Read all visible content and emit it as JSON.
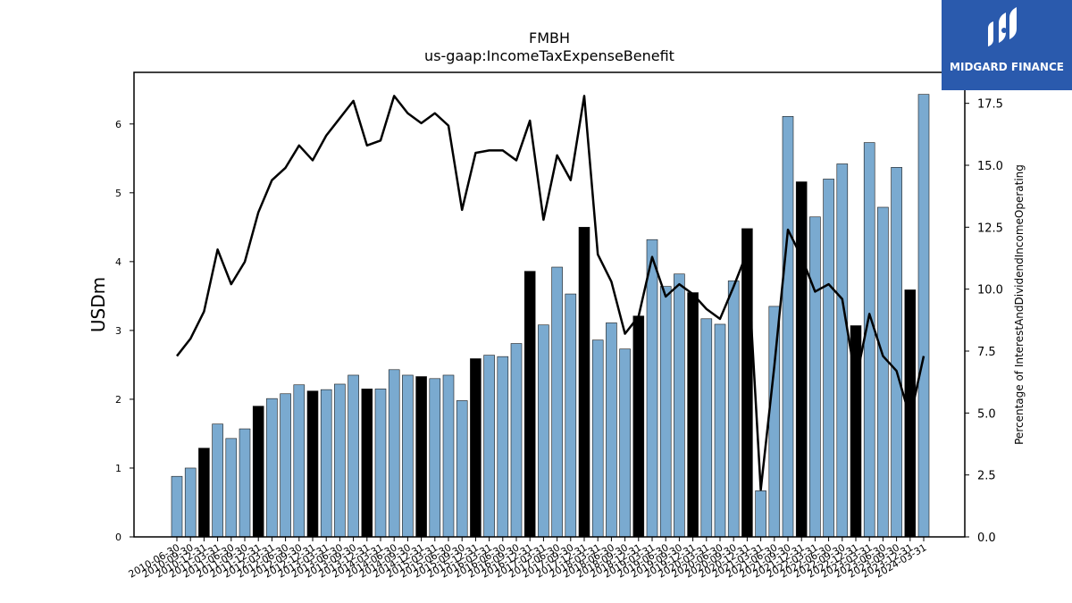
{
  "logo": {
    "text": "MIDGARD FINANCE",
    "icon": "midgard-logo-icon",
    "background": "#2a5aad"
  },
  "chart_data": {
    "type": "bar",
    "title": "FMBH",
    "subtitle": "us-gaap:IncomeTaxExpenseBenefit",
    "ylabel": "USDm",
    "y2label": "Percentage of InterestAndDividendIncomeOperating",
    "ylim": [
      0,
      6.75
    ],
    "y2lim": [
      0,
      18.75
    ],
    "yticks": [
      "0",
      "1",
      "2",
      "3",
      "4",
      "5",
      "6"
    ],
    "y2ticks": [
      "0.0",
      "2.5",
      "5.0",
      "7.5",
      "10.0",
      "12.5",
      "15.0",
      "17.5"
    ],
    "bar_colors": {
      "regular": "#7aaad0",
      "highlight": "#000000"
    },
    "line_color": "#000000",
    "categories": [
      "2010-06-30",
      "2010-09-30",
      "2010-12-31",
      "2011-03-31",
      "2011-06-30",
      "2011-09-30",
      "2011-12-31",
      "2012-03-31",
      "2012-06-30",
      "2012-09-30",
      "2012-12-31",
      "2013-03-31",
      "2013-06-30",
      "2013-09-30",
      "2013-12-31",
      "2014-03-31",
      "2014-06-30",
      "2014-09-30",
      "2014-12-31",
      "2015-03-31",
      "2015-06-30",
      "2015-09-30",
      "2015-12-31",
      "2016-03-31",
      "2016-06-30",
      "2016-09-30",
      "2016-12-31",
      "2017-03-31",
      "2017-06-30",
      "2017-09-30",
      "2017-12-31",
      "2018-03-31",
      "2018-06-30",
      "2018-09-30",
      "2018-12-31",
      "2019-03-31",
      "2019-06-30",
      "2019-09-30",
      "2019-12-31",
      "2020-03-31",
      "2020-06-30",
      "2020-09-30",
      "2020-12-31",
      "2021-03-31",
      "2021-06-30",
      "2021-09-30",
      "2021-12-31",
      "2022-03-31",
      "2022-06-30",
      "2022-09-30",
      "2022-12-31",
      "2023-03-31",
      "2023-06-30",
      "2023-09-30",
      "2023-12-31",
      "2024-03-31"
    ],
    "values": [
      0.88,
      1.0,
      1.29,
      1.64,
      1.43,
      1.57,
      1.9,
      2.01,
      2.08,
      2.21,
      2.12,
      2.14,
      2.22,
      2.35,
      2.15,
      2.15,
      2.43,
      2.35,
      2.33,
      2.3,
      2.35,
      1.98,
      2.59,
      2.64,
      2.62,
      2.81,
      3.86,
      3.08,
      3.92,
      3.53,
      4.5,
      2.86,
      3.11,
      2.73,
      3.21,
      4.32,
      3.64,
      3.82,
      3.55,
      3.17,
      3.09,
      3.72,
      4.48,
      0.67,
      3.35,
      6.11,
      5.16,
      4.65,
      5.2,
      5.42,
      3.07,
      5.73,
      4.79,
      5.37,
      3.59,
      6.43
    ],
    "highlighted": [
      false,
      false,
      true,
      false,
      false,
      false,
      true,
      false,
      false,
      false,
      true,
      false,
      false,
      false,
      true,
      false,
      false,
      false,
      true,
      false,
      false,
      false,
      true,
      false,
      false,
      false,
      true,
      false,
      false,
      false,
      true,
      false,
      false,
      false,
      true,
      false,
      false,
      false,
      true,
      false,
      false,
      false,
      true,
      false,
      false,
      false,
      true,
      false,
      false,
      false,
      true,
      false,
      false,
      false,
      true,
      false
    ],
    "series": [
      {
        "values": [
          7.3,
          8.0,
          9.1,
          11.6,
          10.2,
          11.1,
          13.1,
          14.4,
          14.9,
          15.8,
          15.2,
          16.2,
          16.9,
          17.6,
          15.8,
          16.0,
          17.8,
          17.1,
          16.7,
          17.1,
          16.6,
          13.2,
          15.5,
          15.6,
          15.6,
          15.2,
          16.8,
          12.8,
          15.4,
          14.4,
          17.8,
          11.4,
          10.3,
          8.2,
          8.9,
          11.3,
          9.7,
          10.2,
          9.8,
          9.2,
          8.8,
          10.1,
          11.5,
          1.9,
          6.9,
          12.4,
          11.3,
          9.9,
          10.2,
          9.6,
          6.3,
          9.0,
          7.3,
          6.7,
          4.8,
          7.3
        ]
      }
    ]
  }
}
